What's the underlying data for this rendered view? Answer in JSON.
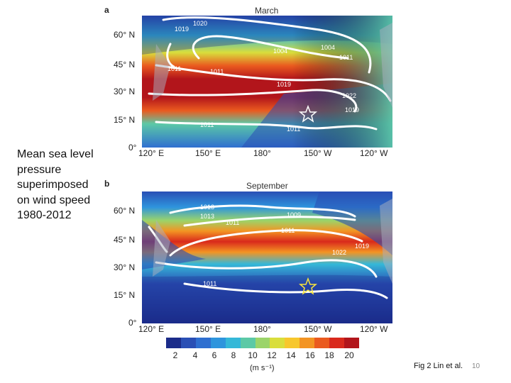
{
  "caption": "Mean sea level pressure superimposed on wind speed 1980-2012",
  "panel_a": {
    "letter": "a",
    "title": "March",
    "pressure_labels": [
      "1020",
      "1011",
      "1004",
      "1004",
      "1011",
      "1019",
      "1022",
      "1019",
      "1011",
      "1011",
      "1011",
      "1019"
    ]
  },
  "panel_b": {
    "letter": "b",
    "title": "September",
    "pressure_labels": [
      "1013",
      "1013",
      "1011",
      "1009",
      "1011",
      "1022",
      "1011",
      "1019"
    ]
  },
  "lat_labels": [
    "60° N",
    "45° N",
    "30° N",
    "15° N",
    "0°"
  ],
  "lon_labels": [
    "120° E",
    "150° E",
    "180°",
    "150° W",
    "120° W"
  ],
  "colorbar": {
    "ticks": [
      "2",
      "4",
      "6",
      "8",
      "10",
      "12",
      "14",
      "16",
      "18",
      "20"
    ],
    "units": "(m s⁻¹)",
    "colors": [
      "#1b2c8a",
      "#2a4fb5",
      "#2f6fd0",
      "#2e95dd",
      "#35b8d8",
      "#5cc9a6",
      "#9bd46a",
      "#d9de3c",
      "#f7c72d",
      "#f39423",
      "#ea5a1f",
      "#d9291c",
      "#b2151b"
    ]
  },
  "credit": "Fig 2 Lin et al.",
  "slide_number": "10"
}
